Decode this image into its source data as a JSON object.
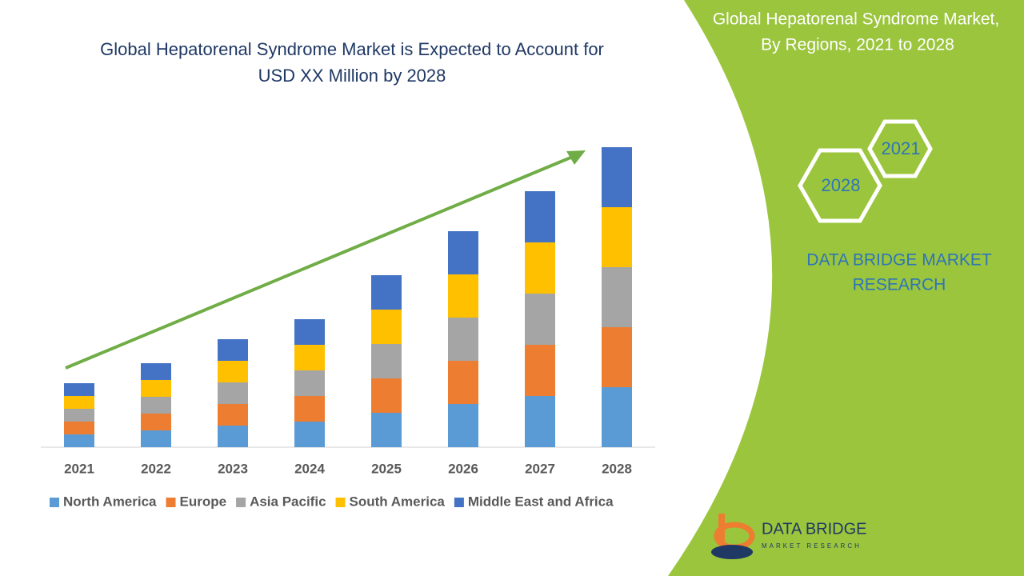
{
  "chart_data": {
    "type": "stacked-bar",
    "title": "Global Hepatorenal Syndrome Market is Expected to Account for USD XX Million by 2028",
    "categories": [
      "2021",
      "2022",
      "2023",
      "2024",
      "2025",
      "2026",
      "2027",
      "2028"
    ],
    "series": [
      {
        "name": "North America",
        "color": "#5b9bd5",
        "values": [
          16,
          21,
          27,
          32,
          43,
          54,
          64,
          75
        ]
      },
      {
        "name": "Europe",
        "color": "#ed7d31",
        "values": [
          16,
          21,
          27,
          32,
          43,
          54,
          64,
          75
        ]
      },
      {
        "name": "Asia Pacific",
        "color": "#a5a5a5",
        "values": [
          16,
          21,
          27,
          32,
          43,
          54,
          64,
          75
        ]
      },
      {
        "name": "South America",
        "color": "#ffc000",
        "values": [
          16,
          21,
          27,
          32,
          43,
          54,
          64,
          75
        ]
      },
      {
        "name": "Middle East and Africa",
        "color": "#4472c4",
        "values": [
          16,
          21,
          27,
          32,
          43,
          54,
          64,
          75
        ]
      }
    ],
    "ylim": [
      0,
      400
    ],
    "legend": "bottom"
  },
  "panel": {
    "title_line1": "Global Hepatorenal Syndrome Market,",
    "title_line2": "By Regions, 2021 to 2028",
    "hex_top": "2021",
    "hex_bottom": "2028",
    "brand_line1": "DATA BRIDGE MARKET",
    "brand_line2": "RESEARCH",
    "logo_name": "DATA BRIDGE",
    "logo_tagline": "MARKET RESEARCH"
  }
}
